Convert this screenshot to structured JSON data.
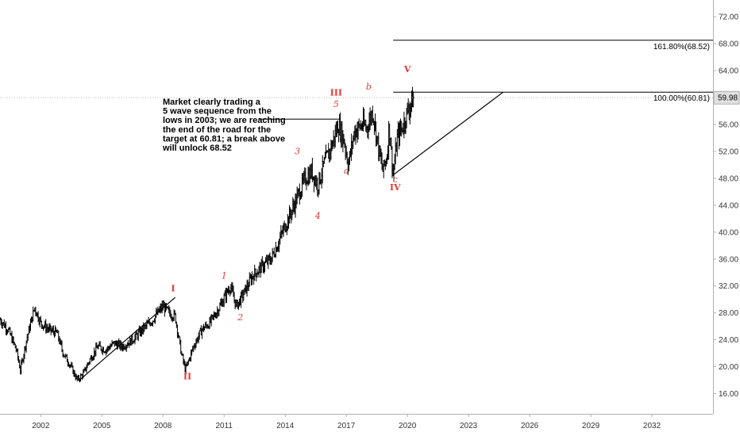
{
  "chart_data": {
    "type": "bar",
    "style": "ohlc-price-bars",
    "title": "",
    "xlabel": "",
    "ylabel": "",
    "x_range": [
      2000.0,
      2035.0
    ],
    "ylim": [
      13.0,
      74.5
    ],
    "grid": false,
    "x_ticks": [
      2002,
      2005,
      2008,
      2011,
      2014,
      2017,
      2020,
      2023,
      2026,
      2029,
      2032
    ],
    "x_tick_labels": [
      "2002",
      "2005",
      "2008",
      "2011",
      "2014",
      "2017",
      "2020",
      "2023",
      "2026",
      "2029",
      "2032"
    ],
    "y_ticks": [
      16,
      20,
      24,
      28,
      32,
      36,
      40,
      44,
      48,
      52,
      56,
      64,
      68,
      72
    ],
    "y_tick_labels": [
      "16.00",
      "20.00",
      "24.00",
      "28.00",
      "32.00",
      "36.00",
      "40.00",
      "44.00",
      "48.00",
      "52.00",
      "56.00",
      "64.00",
      "68.00",
      "72.00"
    ],
    "last_price": 59.98,
    "last_price_label": "59.98",
    "price_path": [
      [
        2000.0,
        27.0
      ],
      [
        2000.4,
        25.5
      ],
      [
        2000.8,
        22.5
      ],
      [
        2001.0,
        19.5
      ],
      [
        2001.3,
        24.0
      ],
      [
        2001.7,
        28.8
      ],
      [
        2002.0,
        26.5
      ],
      [
        2002.4,
        25.5
      ],
      [
        2002.8,
        25.0
      ],
      [
        2003.1,
        22.0
      ],
      [
        2003.4,
        20.5
      ],
      [
        2003.8,
        18.0
      ],
      [
        2004.1,
        19.0
      ],
      [
        2004.4,
        21.0
      ],
      [
        2004.8,
        23.0
      ],
      [
        2005.2,
        22.5
      ],
      [
        2005.6,
        23.5
      ],
      [
        2006.0,
        23.0
      ],
      [
        2006.5,
        24.0
      ],
      [
        2007.0,
        25.5
      ],
      [
        2007.5,
        27.0
      ],
      [
        2008.0,
        29.0
      ],
      [
        2008.3,
        28.0
      ],
      [
        2008.6,
        27.5
      ],
      [
        2008.9,
        22.0
      ],
      [
        2009.1,
        19.5
      ],
      [
        2009.5,
        23.0
      ],
      [
        2009.9,
        25.5
      ],
      [
        2010.3,
        26.5
      ],
      [
        2010.8,
        29.0
      ],
      [
        2011.3,
        32.0
      ],
      [
        2011.6,
        29.0
      ],
      [
        2011.9,
        30.5
      ],
      [
        2012.4,
        33.5
      ],
      [
        2012.9,
        35.0
      ],
      [
        2013.3,
        36.0
      ],
      [
        2013.6,
        38.0
      ],
      [
        2014.0,
        41.0
      ],
      [
        2014.3,
        43.0
      ],
      [
        2014.7,
        46.0
      ],
      [
        2015.0,
        48.0
      ],
      [
        2015.3,
        49.0
      ],
      [
        2015.6,
        47.0
      ],
      [
        2015.9,
        50.0
      ],
      [
        2016.3,
        53.0
      ],
      [
        2016.6,
        56.0
      ],
      [
        2016.9,
        53.5
      ],
      [
        2017.1,
        50.0
      ],
      [
        2017.4,
        55.0
      ],
      [
        2017.8,
        56.0
      ],
      [
        2018.0,
        55.5
      ],
      [
        2018.3,
        58.0
      ],
      [
        2018.6,
        52.0
      ],
      [
        2018.8,
        49.0
      ],
      [
        2019.0,
        51.5
      ],
      [
        2019.1,
        56.0
      ],
      [
        2019.3,
        48.5
      ],
      [
        2019.5,
        54.0
      ],
      [
        2019.8,
        56.0
      ],
      [
        2020.0,
        58.0
      ],
      [
        2020.3,
        59.98
      ]
    ],
    "trend_lines": [
      {
        "from": [
          2003.9,
          18.0
        ],
        "to": [
          2008.6,
          30.3
        ]
      },
      {
        "from": [
          2019.3,
          48.5
        ],
        "to": [
          2024.7,
          60.81
        ]
      }
    ],
    "fib_levels": [
      {
        "value": 68.52,
        "label": "161.80%(68.52)",
        "x_start": 2019.3
      },
      {
        "value": 60.81,
        "label": "100.00%(60.81)",
        "x_start": 2019.3
      }
    ],
    "wave_labels": [
      {
        "text": "I",
        "x": 2008.5,
        "y": 31.2,
        "kind": "major"
      },
      {
        "text": "II",
        "x": 2009.2,
        "y": 18.1,
        "kind": "major"
      },
      {
        "text": "III",
        "x": 2016.5,
        "y": 60.3,
        "kind": "major"
      },
      {
        "text": "IV",
        "x": 2019.4,
        "y": 46.2,
        "kind": "major"
      },
      {
        "text": "V",
        "x": 2020.0,
        "y": 63.8,
        "kind": "major"
      },
      {
        "text": "1",
        "x": 2011.0,
        "y": 33.1,
        "kind": "minor"
      },
      {
        "text": "2",
        "x": 2011.8,
        "y": 26.9,
        "kind": "minor"
      },
      {
        "text": "3",
        "x": 2014.6,
        "y": 51.6,
        "kind": "minor"
      },
      {
        "text": "4",
        "x": 2015.6,
        "y": 42.0,
        "kind": "minor"
      },
      {
        "text": "5",
        "x": 2016.5,
        "y": 58.6,
        "kind": "minor"
      },
      {
        "text": "a",
        "x": 2017.0,
        "y": 48.7,
        "kind": "minor"
      },
      {
        "text": "b",
        "x": 2018.1,
        "y": 61.2,
        "kind": "minor"
      },
      {
        "text": "c",
        "x": 2019.4,
        "y": 47.4,
        "kind": "minor"
      }
    ],
    "annotation": {
      "lines": [
        "Market clearly trading a",
        "5 wave sequence from the",
        "lows in 2003; we are reaching",
        "the end of the road for the",
        "target at 60.81; a break above",
        "will unlock 68.52"
      ],
      "pointer_from": [
        2012.7,
        56.8
      ],
      "pointer_to": [
        2016.7,
        56.8
      ]
    }
  }
}
